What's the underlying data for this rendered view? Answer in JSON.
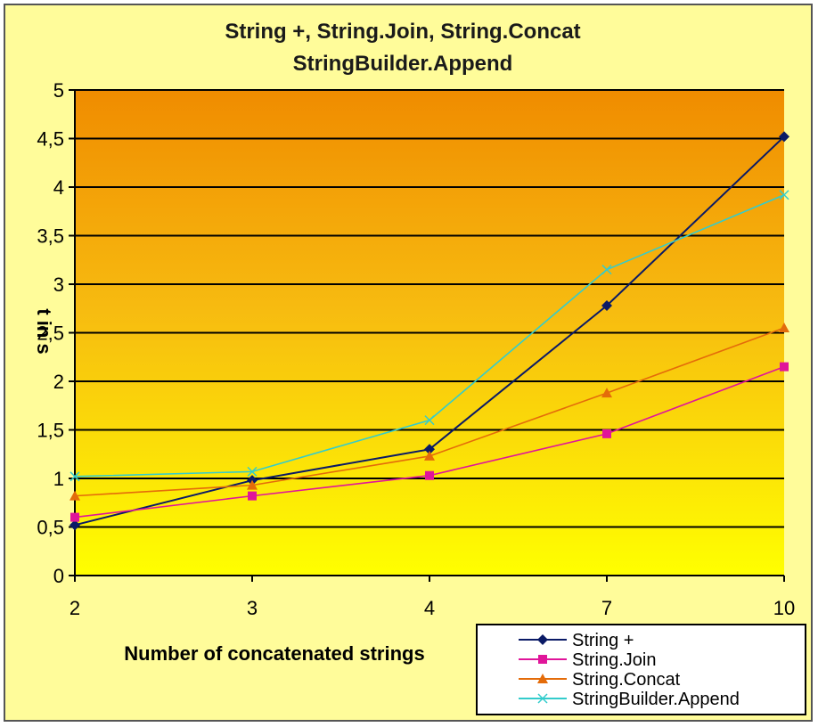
{
  "chart_data": {
    "type": "line",
    "title_lines": [
      "String +, String.Join, String.Concat",
      "StringBuilder.Append"
    ],
    "xlabel": "Number of concatenated strings",
    "ylabel": "t in s",
    "categories": [
      "2",
      "3",
      "4",
      "7",
      "10"
    ],
    "ylim": [
      0,
      5
    ],
    "yticks": [
      "0",
      "0,5",
      "1",
      "1,5",
      "2",
      "2,5",
      "3",
      "3,5",
      "4",
      "4,5",
      "5"
    ],
    "grid": true,
    "legend_position": "bottom-right",
    "series": [
      {
        "name": "String +",
        "color": "#0a1a66",
        "marker": "diamond",
        "values": [
          0.52,
          0.98,
          1.3,
          2.78,
          4.52
        ]
      },
      {
        "name": "String.Join",
        "color": "#e0159a",
        "marker": "square",
        "values": [
          0.6,
          0.82,
          1.03,
          1.46,
          2.15
        ]
      },
      {
        "name": "String.Concat",
        "color": "#e46c0a",
        "marker": "triangle",
        "values": [
          0.82,
          0.93,
          1.23,
          1.88,
          2.55
        ]
      },
      {
        "name": "StringBuilder.Append",
        "color": "#33cccc",
        "marker": "star",
        "values": [
          1.02,
          1.07,
          1.6,
          3.15,
          3.92
        ]
      }
    ]
  }
}
